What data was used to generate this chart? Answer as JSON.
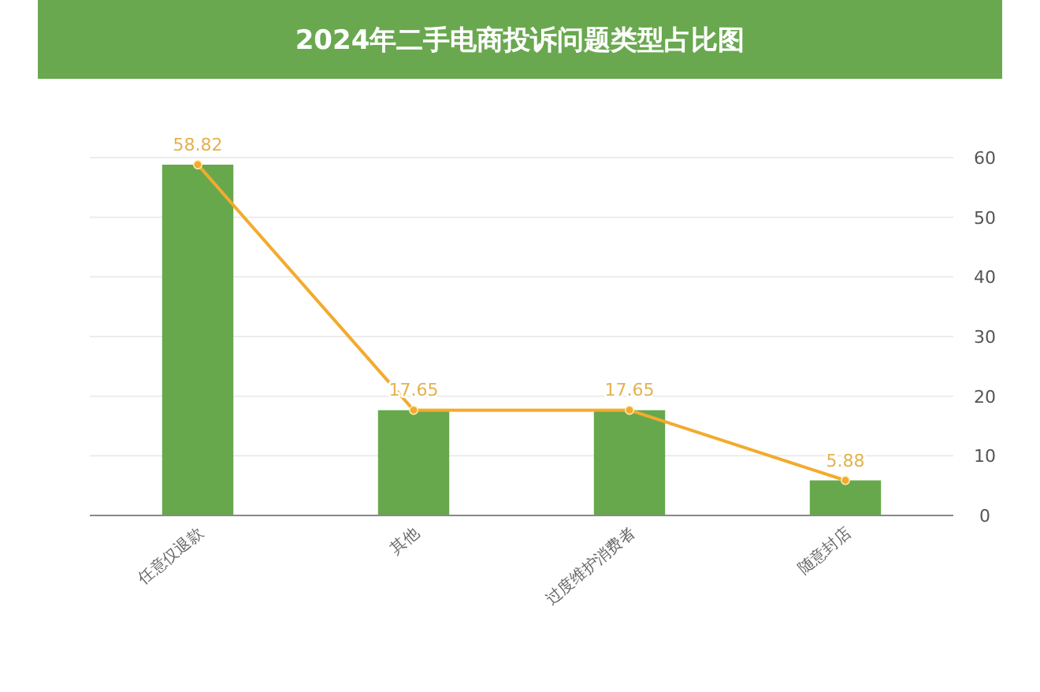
{
  "chart_data": {
    "type": "bar",
    "title": "2024年二手电商投诉问题类型占比图",
    "categories": [
      "任意仅退款",
      "其他",
      "过度维护消费者",
      "随意封店"
    ],
    "series": [
      {
        "color": "#67a84c",
        "values": [
          58.82,
          17.65,
          17.65,
          5.88
        ]
      },
      {
        "type": "line",
        "color": "#f2ab2e",
        "marker": "circle",
        "values": [
          58.82,
          17.65,
          17.65,
          5.88
        ],
        "value_labels": [
          "58.82",
          "17.65",
          "17.65",
          "5.88"
        ]
      }
    ],
    "ylim": [
      0,
      60
    ],
    "yticks": [
      0,
      10,
      20,
      30,
      40,
      50,
      60
    ],
    "grid": "y"
  }
}
